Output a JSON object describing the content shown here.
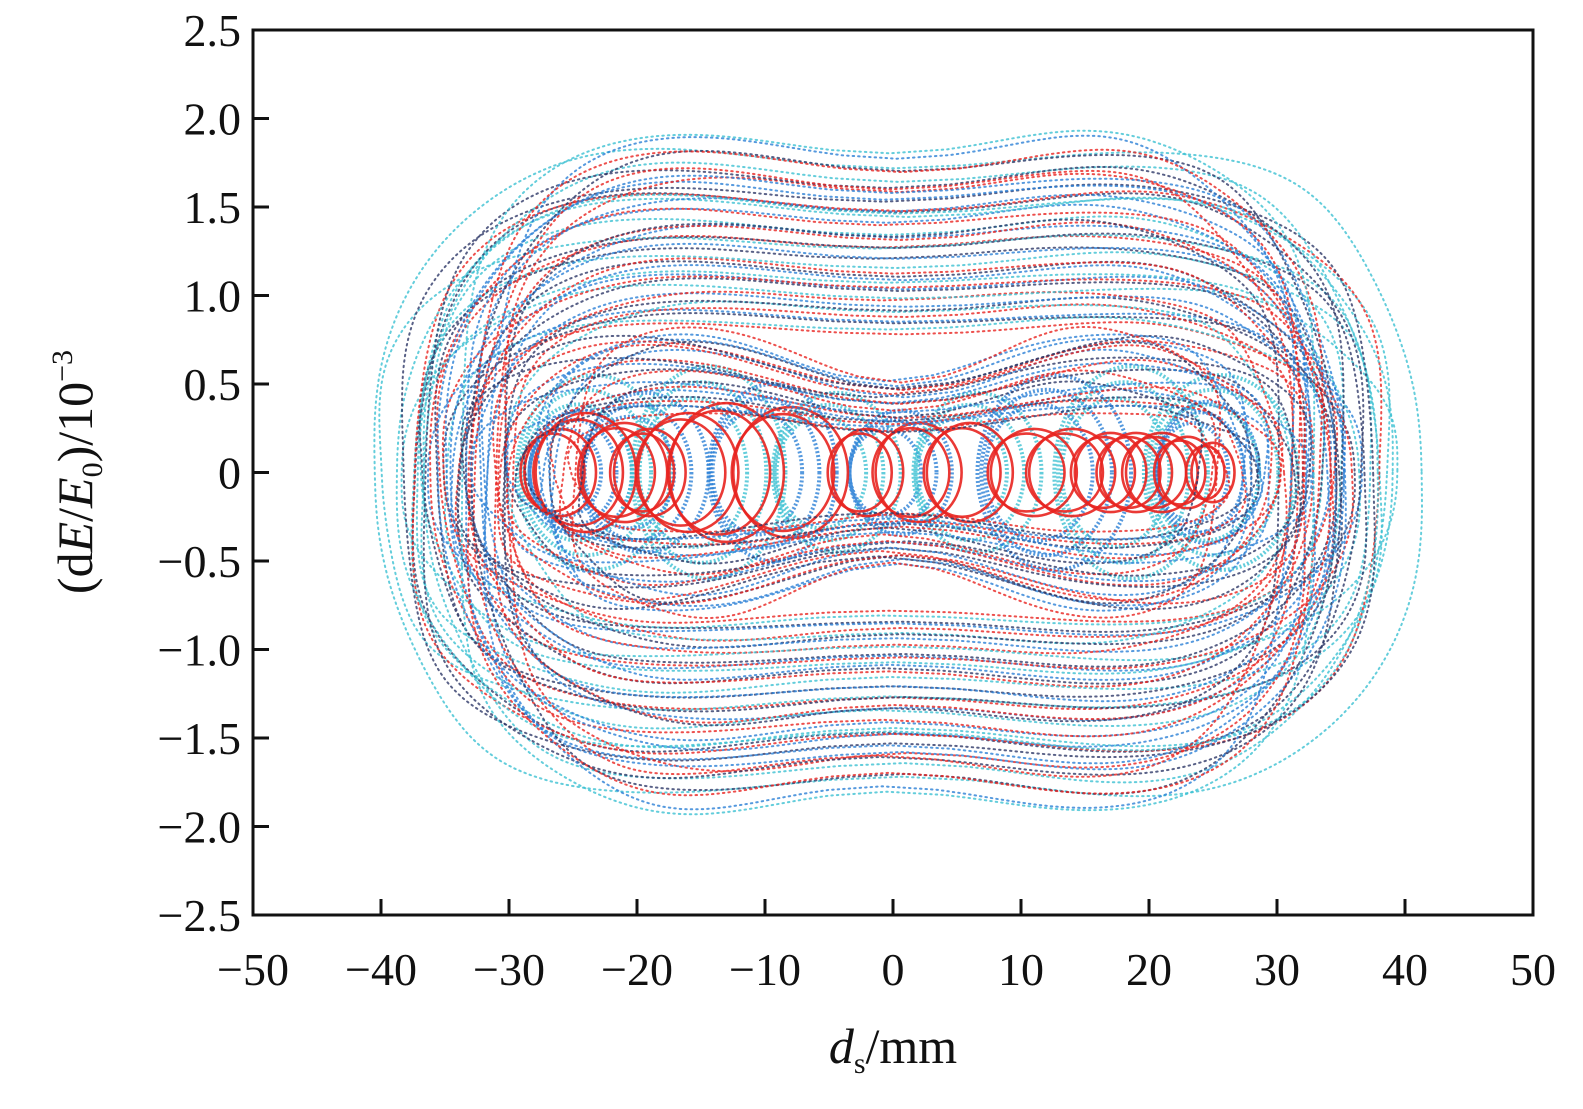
{
  "chart_data": {
    "type": "scatter",
    "title": "",
    "xlabel_parts": {
      "main": "d",
      "sub": "s",
      "rest": "/mm"
    },
    "ylabel_parts": {
      "open": "(d",
      "e1": "E",
      "slash": "/",
      "e2": "E",
      "sub": "0",
      "close": ")/10",
      "sup": "−3"
    },
    "xlim": [
      -50,
      50
    ],
    "ylim": [
      -2.5,
      2.5
    ],
    "xticks": [
      -50,
      -40,
      -30,
      -20,
      -10,
      0,
      10,
      20,
      30,
      40,
      50
    ],
    "xtick_labels": [
      "−50",
      "−40",
      "−30",
      "−20",
      "−10",
      "0",
      "10",
      "20",
      "30",
      "40",
      "50"
    ],
    "yticks": [
      -2.5,
      -2.0,
      -1.5,
      -1.0,
      -0.5,
      0,
      0.5,
      1.0,
      1.5,
      2.0,
      2.5
    ],
    "ytick_labels": [
      "−2.5",
      "−2.0",
      "−1.5",
      "−1.0",
      "−0.5",
      "0",
      "0.5",
      "1.0",
      "1.5",
      "2.0",
      "2.5"
    ],
    "grid": false,
    "legend": "none",
    "colors": {
      "red": "#e8231f",
      "blue": "#2a7fd6",
      "cyan": "#3cc0d2",
      "navy": "#2e3868"
    },
    "series": [
      {
        "name": "outer-envelope-orbits",
        "style": "dotted",
        "count": 46,
        "x_half_width_range": [
          27,
          44
        ],
        "y_half_height_range": [
          0.9,
          2.1
        ],
        "x_center": 0,
        "colors": [
          "red",
          "cyan",
          "navy",
          "blue"
        ]
      },
      {
        "name": "blue-inner-loops",
        "style": "dotted-dense",
        "colors": [
          "blue",
          "cyan"
        ],
        "loops": [
          {
            "cx": -25,
            "rx": 4,
            "ry": 0.35
          },
          {
            "cx": -24,
            "rx": 6,
            "ry": 0.55
          },
          {
            "cx": -20,
            "rx": 5,
            "ry": 0.45
          },
          {
            "cx": -15,
            "rx": 6,
            "ry": 0.6
          },
          {
            "cx": -10,
            "rx": 5,
            "ry": 0.5
          },
          {
            "cx": -5,
            "rx": 5,
            "ry": 0.45
          },
          {
            "cx": 0,
            "rx": 4,
            "ry": 0.35
          },
          {
            "cx": 6,
            "rx": 5,
            "ry": 0.45
          },
          {
            "cx": 12,
            "rx": 6,
            "ry": 0.55
          },
          {
            "cx": 18,
            "rx": 6,
            "ry": 0.6
          },
          {
            "cx": 24,
            "rx": 4,
            "ry": 0.4
          },
          {
            "cx": 25,
            "rx": 6,
            "ry": 0.55
          }
        ]
      },
      {
        "name": "red-inner-loops",
        "style": "solid-dots",
        "colors": [
          "red"
        ],
        "loops": [
          {
            "cx": -26,
            "rx": 2.5,
            "ry": 0.22
          },
          {
            "cx": -24,
            "rx": 3.5,
            "ry": 0.3
          },
          {
            "cx": -21,
            "rx": 3,
            "ry": 0.25
          },
          {
            "cx": -19,
            "rx": 2.5,
            "ry": 0.22
          },
          {
            "cx": -16,
            "rx": 3.5,
            "ry": 0.3
          },
          {
            "cx": -13,
            "rx": 4,
            "ry": 0.35
          },
          {
            "cx": -8,
            "rx": 4,
            "ry": 0.33
          },
          {
            "cx": -2,
            "rx": 2.5,
            "ry": 0.22
          },
          {
            "cx": 2,
            "rx": 3,
            "ry": 0.25
          },
          {
            "cx": 6,
            "rx": 3,
            "ry": 0.25
          },
          {
            "cx": 11,
            "rx": 3,
            "ry": 0.22
          },
          {
            "cx": 14,
            "rx": 3,
            "ry": 0.22
          },
          {
            "cx": 17,
            "rx": 2.5,
            "ry": 0.2
          },
          {
            "cx": 19,
            "rx": 2.5,
            "ry": 0.2
          },
          {
            "cx": 21,
            "rx": 2.5,
            "ry": 0.2
          },
          {
            "cx": 23,
            "rx": 2,
            "ry": 0.18
          },
          {
            "cx": 25,
            "rx": 1.5,
            "ry": 0.15
          }
        ]
      },
      {
        "name": "red-figure-eight-orbits",
        "style": "dotted",
        "count": 22,
        "x_half_width_range": [
          22,
          36
        ],
        "y_half_height_range": [
          0.4,
          1.0
        ],
        "waist_ratio": 0.45,
        "colors": [
          "red",
          "navy",
          "blue"
        ]
      }
    ]
  }
}
